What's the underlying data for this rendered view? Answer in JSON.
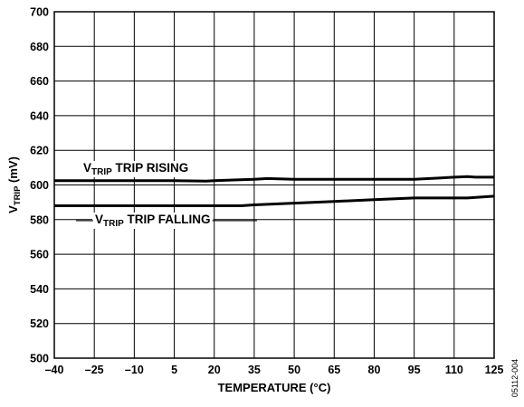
{
  "chart_data": {
    "type": "line",
    "xlabel": "TEMPERATURE (°C)",
    "ylabel": {
      "main": "V",
      "sub": "TRIP",
      "rest": " (mV)"
    },
    "xlim": [
      -40,
      125
    ],
    "ylim": [
      500,
      700
    ],
    "x_ticks": [
      -40,
      -25,
      -10,
      5,
      20,
      35,
      50,
      65,
      80,
      95,
      110,
      125
    ],
    "x_tick_labels": [
      "–40",
      "–25",
      "–10",
      "5",
      "20",
      "35",
      "50",
      "65",
      "80",
      "95",
      "110",
      "125"
    ],
    "y_ticks": [
      500,
      520,
      540,
      560,
      580,
      600,
      620,
      640,
      660,
      680,
      700
    ],
    "y_tick_labels": [
      "500",
      "520",
      "540",
      "560",
      "580",
      "600",
      "620",
      "640",
      "660",
      "680",
      "700"
    ],
    "grid": true,
    "series": [
      {
        "label": {
          "main": "V",
          "sub": "TRIP",
          "rest": " TRIP RISING"
        },
        "x": [
          -40,
          -25,
          -10,
          5,
          17,
          20,
          35,
          40,
          50,
          65,
          80,
          95,
          105,
          110,
          115,
          118,
          125
        ],
        "y": [
          602.5,
          602.5,
          602.5,
          602.5,
          602.2,
          602.5,
          603.3,
          603.7,
          603.3,
          603.3,
          603.3,
          603.3,
          604,
          604.5,
          604.8,
          604.5,
          604.5
        ]
      },
      {
        "label": {
          "main": "V",
          "sub": "TRIP",
          "rest": " TRIP FALLING"
        },
        "x": [
          -40,
          -25,
          -10,
          5,
          20,
          30,
          35,
          50,
          65,
          80,
          95,
          110,
          115,
          125
        ],
        "y": [
          588,
          588,
          588,
          588,
          588,
          588,
          588.5,
          589.5,
          590.5,
          591.5,
          592.5,
          592.5,
          592.5,
          593.5
        ]
      }
    ],
    "figure_id": "05112-004"
  }
}
